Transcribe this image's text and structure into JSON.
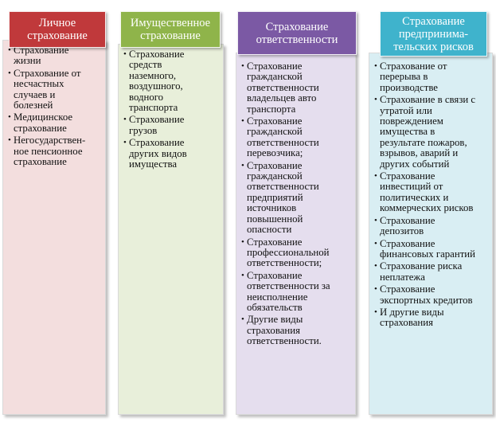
{
  "columns": [
    {
      "id": "personal",
      "header": "Личное\nстрахование",
      "header_color": "#c0393b",
      "body_color": "#f3dede",
      "items": [
        "Страхование\nжизни",
        "Страхование от\nнесчастных\nслучаев и\nболезней",
        "Медицинское\nстрахование",
        "Негосударствен-\nное пенсионное\nстрахование"
      ]
    },
    {
      "id": "property",
      "header": "Имущественное\nстрахование",
      "header_color": "#8fb44a",
      "body_color": "#e8efda",
      "items": [
        "Страхование\nсредств\nназемного,\nвоздушного,\nводного\nтранспорта",
        "Страхование\nгрузов",
        "Страхование\nдругих видов\nимущества"
      ]
    },
    {
      "id": "liability",
      "header": "Страхование\nответственности",
      "header_color": "#7b59a4",
      "body_color": "#e5deee",
      "items": [
        "Страхование\nгражданской\nответственности\nвладельцев авто\nтранспорта",
        "Страхование\nгражданской\nответственности\nперевозчика;",
        "Страхование\nгражданской\nответственности\nпредприятий\nисточников\nповышенной\nопасности",
        "Страхование\nпрофессиональной\nответственности;",
        "Страхование\nответственности за\nнеисполнение\nобязательств",
        "Другие виды\nстрахования\nответственности."
      ]
    },
    {
      "id": "business",
      "header": "Страхование\nпредпринима-\nтельских рисков",
      "header_color": "#3fb3cc",
      "body_color": "#d9eef3",
      "items": [
        "Страхование от\nперерыва в\nпроизводстве",
        "Страхование в связи с\nутратой или\nповреждением\nимущества в\nрезультате пожаров,\nвзрывов, аварий и\nдругих событий",
        "Страхование\nинвестиций от\nполитических и\nкоммерческих рисков",
        "Страхование\nдепозитов",
        "Страхование\nфинансовых гарантий",
        "Страхование риска\nнеплатежа",
        "Страхование\nэкспортных кредитов",
        " И другие виды\nстрахования"
      ]
    }
  ]
}
